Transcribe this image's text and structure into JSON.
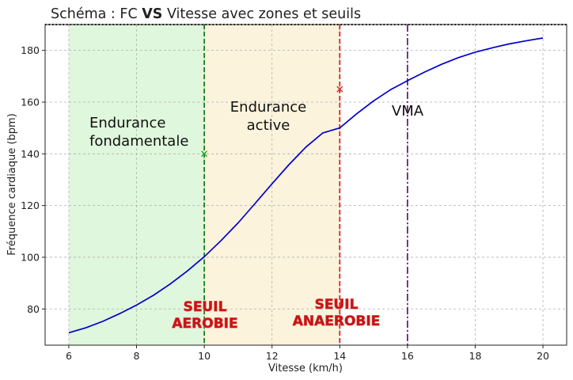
{
  "chart_data": {
    "type": "line",
    "title": {
      "prefix": "Schéma : FC ",
      "emphasis": "VS",
      "suffix": " Vitesse avec zones et seuils"
    },
    "xlabel": "Vitesse (km/h)",
    "ylabel": "Fréquence cardiaque (bpm)",
    "xlim": [
      5.3,
      20.7
    ],
    "ylim": [
      66,
      190
    ],
    "xticks": [
      6,
      8,
      10,
      12,
      14,
      16,
      18,
      20
    ],
    "yticks": [
      80,
      100,
      120,
      140,
      160,
      180
    ],
    "grid": true,
    "series": [
      {
        "color": "#0000cc",
        "x": [
          6,
          6.5,
          7,
          7.5,
          8,
          8.5,
          9,
          9.5,
          10,
          10.5,
          11,
          11.5,
          12,
          12.5,
          13,
          13.5,
          14,
          14.5,
          15,
          15.5,
          16,
          16.5,
          17,
          17.5,
          18,
          18.5,
          19,
          19.5,
          20
        ],
        "y": [
          70.8,
          72.7,
          75.2,
          78.2,
          81.5,
          85.3,
          89.7,
          94.7,
          100.2,
          106.5,
          113.3,
          120.8,
          128.4,
          135.8,
          142.6,
          148.1,
          150.0,
          155.5,
          160.5,
          164.8,
          168.3,
          171.6,
          174.6,
          177.2,
          179.3,
          181.0,
          182.5,
          183.7,
          184.8
        ]
      }
    ],
    "zones": [
      {
        "label_lines": [
          "Endurance",
          "fondamentale"
        ],
        "x_from": 6,
        "x_to": 10,
        "color": "#dff7dc"
      },
      {
        "label_lines": [
          "Endurance",
          "active"
        ],
        "x_from": 10,
        "x_to": 14,
        "color": "#fbf3dc"
      }
    ],
    "thresholds": [
      {
        "label_lines": [
          "SEUIL",
          "AEROBIE"
        ],
        "x": 10,
        "color": "#1a7f1a",
        "style": "dashed"
      },
      {
        "label_lines": [
          "SEUIL",
          "ANAEROBIE"
        ],
        "x": 14,
        "color": "#dd2222",
        "style": "dashed"
      },
      {
        "label_lines": [
          "VMA"
        ],
        "x": 16,
        "color": "#6b1f7a",
        "style": "dashdot"
      }
    ],
    "markers": [
      {
        "x": 10,
        "y": 140,
        "symbol": "x",
        "color": "#22aa22"
      },
      {
        "x": 14,
        "y": 165,
        "symbol": "x",
        "color": "#dd2222"
      }
    ],
    "reference_line": {
      "y": 190,
      "style": "dotted",
      "color": "#000000"
    }
  }
}
